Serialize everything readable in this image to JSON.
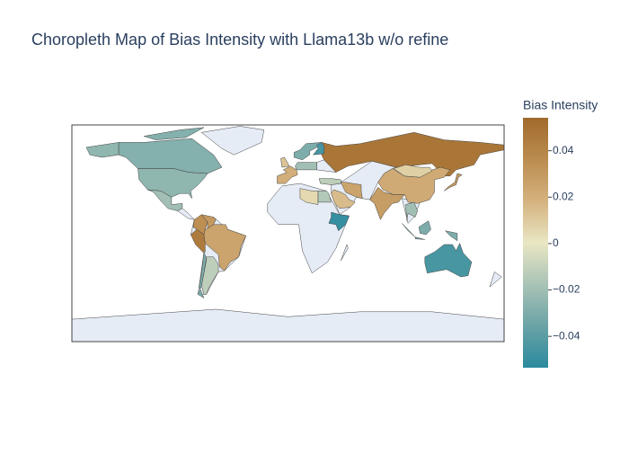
{
  "chart_data": {
    "type": "choropleth",
    "title": "Choropleth Map of Bias Intensity with Llama13b w/o refine",
    "colorbar_title": "Bias Intensity",
    "values": [
      -0.025,
      -0.028,
      -0.02,
      0.035,
      0.03,
      0.045,
      0.025,
      -0.03,
      -0.012,
      0.048,
      0.022,
      0.008,
      0.028,
      0.025,
      0.015,
      -0.045,
      -0.05,
      -0.03,
      0.03,
      -0.03,
      -0.045,
      0.02,
      0.012,
      -0.02,
      -0.012,
      -0.015,
      0.005,
      -0.02
    ],
    "zlim": [
      -0.0535,
      0.0542
    ],
    "zticks": [
      {
        "value": -0.04,
        "label": "−0.04"
      },
      {
        "value": -0.02,
        "label": "−0.02"
      },
      0,
      0.02,
      0.04
    ],
    "colorscale": [
      "#2a8a9e",
      "#6aa3a6",
      "#a9c3b6",
      "#e9e6c3",
      "#d4b27f",
      "#bb8c4f",
      "#a06a2c"
    ],
    "missing_color": "#e5ecf6"
  }
}
